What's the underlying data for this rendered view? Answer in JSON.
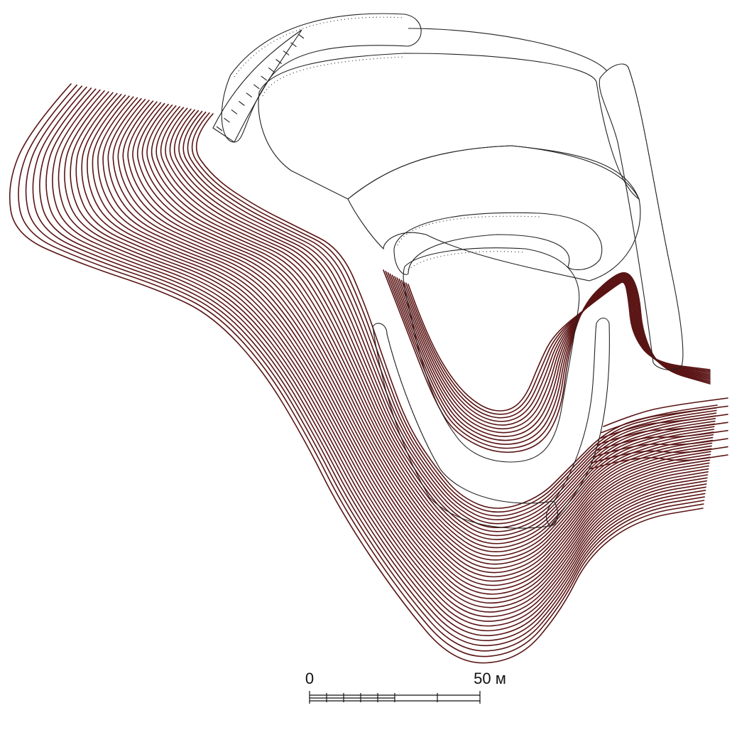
{
  "scale_bar": {
    "label_start": "0",
    "label_end": "50 м"
  },
  "colors": {
    "contour": "#5a1414",
    "rampart": "#222222",
    "background": "#ffffff"
  }
}
